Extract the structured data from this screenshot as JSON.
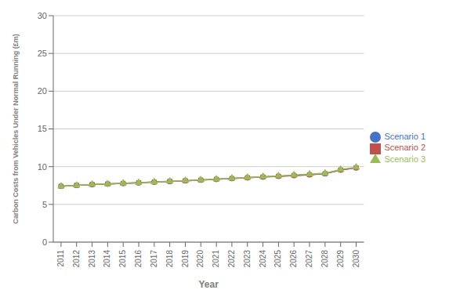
{
  "chart_data": {
    "type": "line",
    "xlabel": "Year",
    "ylabel": "Carbon Costs from Vehicles Under Normal Running (£m)",
    "x": [
      2011,
      2012,
      2013,
      2014,
      2015,
      2016,
      2017,
      2018,
      2019,
      2020,
      2021,
      2022,
      2023,
      2024,
      2025,
      2026,
      2027,
      2028,
      2029,
      2030
    ],
    "series": [
      {
        "name": "Scenario 1",
        "color": "#4472C4",
        "marker": "circle",
        "values": [
          7.4,
          7.52,
          7.64,
          7.71,
          7.78,
          7.87,
          7.96,
          8.05,
          8.13,
          8.22,
          8.32,
          8.43,
          8.53,
          8.63,
          8.73,
          8.83,
          8.93,
          9.07,
          9.56,
          9.85
        ]
      },
      {
        "name": "Scenario 2",
        "color": "#C0504D",
        "marker": "square",
        "values": [
          7.4,
          7.52,
          7.64,
          7.71,
          7.78,
          7.87,
          7.96,
          8.05,
          8.13,
          8.22,
          8.32,
          8.43,
          8.53,
          8.63,
          8.73,
          8.83,
          8.93,
          9.07,
          9.56,
          9.85
        ]
      },
      {
        "name": "Scenario 3",
        "color": "#9BBB59",
        "marker": "triangle",
        "values": [
          7.4,
          7.52,
          7.65,
          7.72,
          7.8,
          7.89,
          7.98,
          8.07,
          8.16,
          8.25,
          8.35,
          8.46,
          8.57,
          8.68,
          8.78,
          8.89,
          9.0,
          9.13,
          9.62,
          9.92
        ]
      }
    ],
    "xlim": [
      2010.5,
      2030.5
    ],
    "xticks": [
      2011,
      2012,
      2013,
      2014,
      2015,
      2016,
      2017,
      2018,
      2019,
      2020,
      2021,
      2022,
      2023,
      2024,
      2025,
      2026,
      2027,
      2028,
      2029,
      2030
    ],
    "ylim": [
      0,
      30
    ],
    "yticks": [
      0,
      5,
      10,
      15,
      20,
      25,
      30
    ],
    "grid": "y",
    "legend": "right"
  }
}
